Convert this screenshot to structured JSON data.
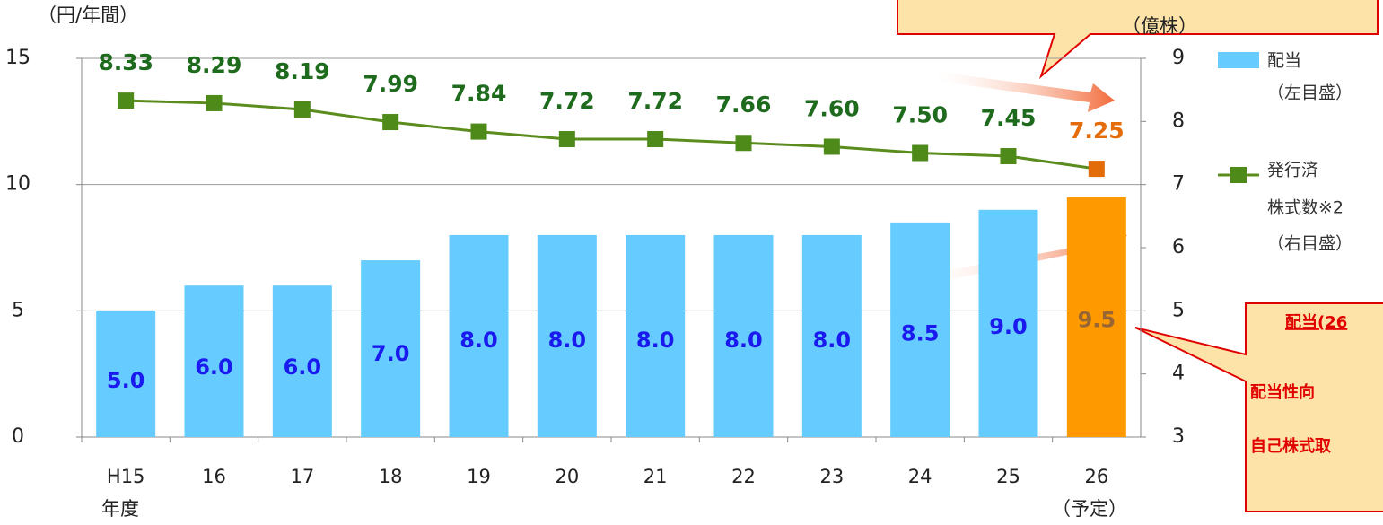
{
  "chart_data": {
    "type": "bar_line",
    "y_label": "（円/年間）",
    "y2_label": "（億株）",
    "categories": [
      "H15",
      "16",
      "17",
      "18",
      "19",
      "20",
      "21",
      "22",
      "23",
      "24",
      "25",
      "26"
    ],
    "x_label": "年度",
    "x_note": "（予定）",
    "series": [
      {
        "name": "配当",
        "name_note": "（左目盛）",
        "type": "bar",
        "color": "#66ccff",
        "point_colors": [
          "#66ccff",
          "#66ccff",
          "#66ccff",
          "#66ccff",
          "#66ccff",
          "#66ccff",
          "#66ccff",
          "#66ccff",
          "#66ccff",
          "#66ccff",
          "#66ccff",
          "#ff9900"
        ],
        "label_colors": [
          "#1a1aee",
          "#1a1aee",
          "#1a1aee",
          "#1a1aee",
          "#1a1aee",
          "#1a1aee",
          "#1a1aee",
          "#1a1aee",
          "#1a1aee",
          "#1a1aee",
          "#1a1aee",
          "#996633"
        ],
        "values": [
          5,
          6,
          6,
          7,
          8,
          8,
          8,
          8,
          8,
          8.5,
          9,
          9.5
        ],
        "value_labels": [
          "5.0",
          "6.0",
          "6.0",
          "7.0",
          "8.0",
          "8.0",
          "8.0",
          "8.0",
          "8.0",
          "8.5",
          "9.0",
          "9.5"
        ]
      },
      {
        "name": "発行済",
        "name_cont": [
          "株式数※2",
          "（右目盛）"
        ],
        "type": "line",
        "axis": "y2",
        "color": "#5b8c1e",
        "point_colors": [
          "#4e8a1a",
          "#4e8a1a",
          "#4e8a1a",
          "#4e8a1a",
          "#4e8a1a",
          "#4e8a1a",
          "#4e8a1a",
          "#4e8a1a",
          "#4e8a1a",
          "#4e8a1a",
          "#4e8a1a",
          "#e36c09"
        ],
        "label_colors": [
          "#1e6b1e",
          "#1e6b1e",
          "#1e6b1e",
          "#1e6b1e",
          "#1e6b1e",
          "#1e6b1e",
          "#1e6b1e",
          "#1e6b1e",
          "#1e6b1e",
          "#1e6b1e",
          "#1e6b1e",
          "#e46c0a"
        ],
        "values": [
          8.33,
          8.29,
          8.19,
          7.99,
          7.84,
          7.72,
          7.72,
          7.66,
          7.6,
          7.5,
          7.45,
          7.25
        ],
        "value_labels": [
          "8.33",
          "8.29",
          "8.19",
          "7.99",
          "7.84",
          "7.72",
          "7.72",
          "7.66",
          "7.60",
          "7.50",
          "7.45",
          "7.25"
        ]
      }
    ],
    "ylim": [
      0,
      15
    ],
    "yticks": [
      0,
      5,
      10,
      15
    ],
    "y2lim": [
      3,
      9
    ],
    "y2ticks": [
      3,
      4,
      5,
      6,
      7,
      8,
      9
    ],
    "callout_lines": [
      "配当(26",
      "配当性向",
      "自己株式取"
    ]
  }
}
